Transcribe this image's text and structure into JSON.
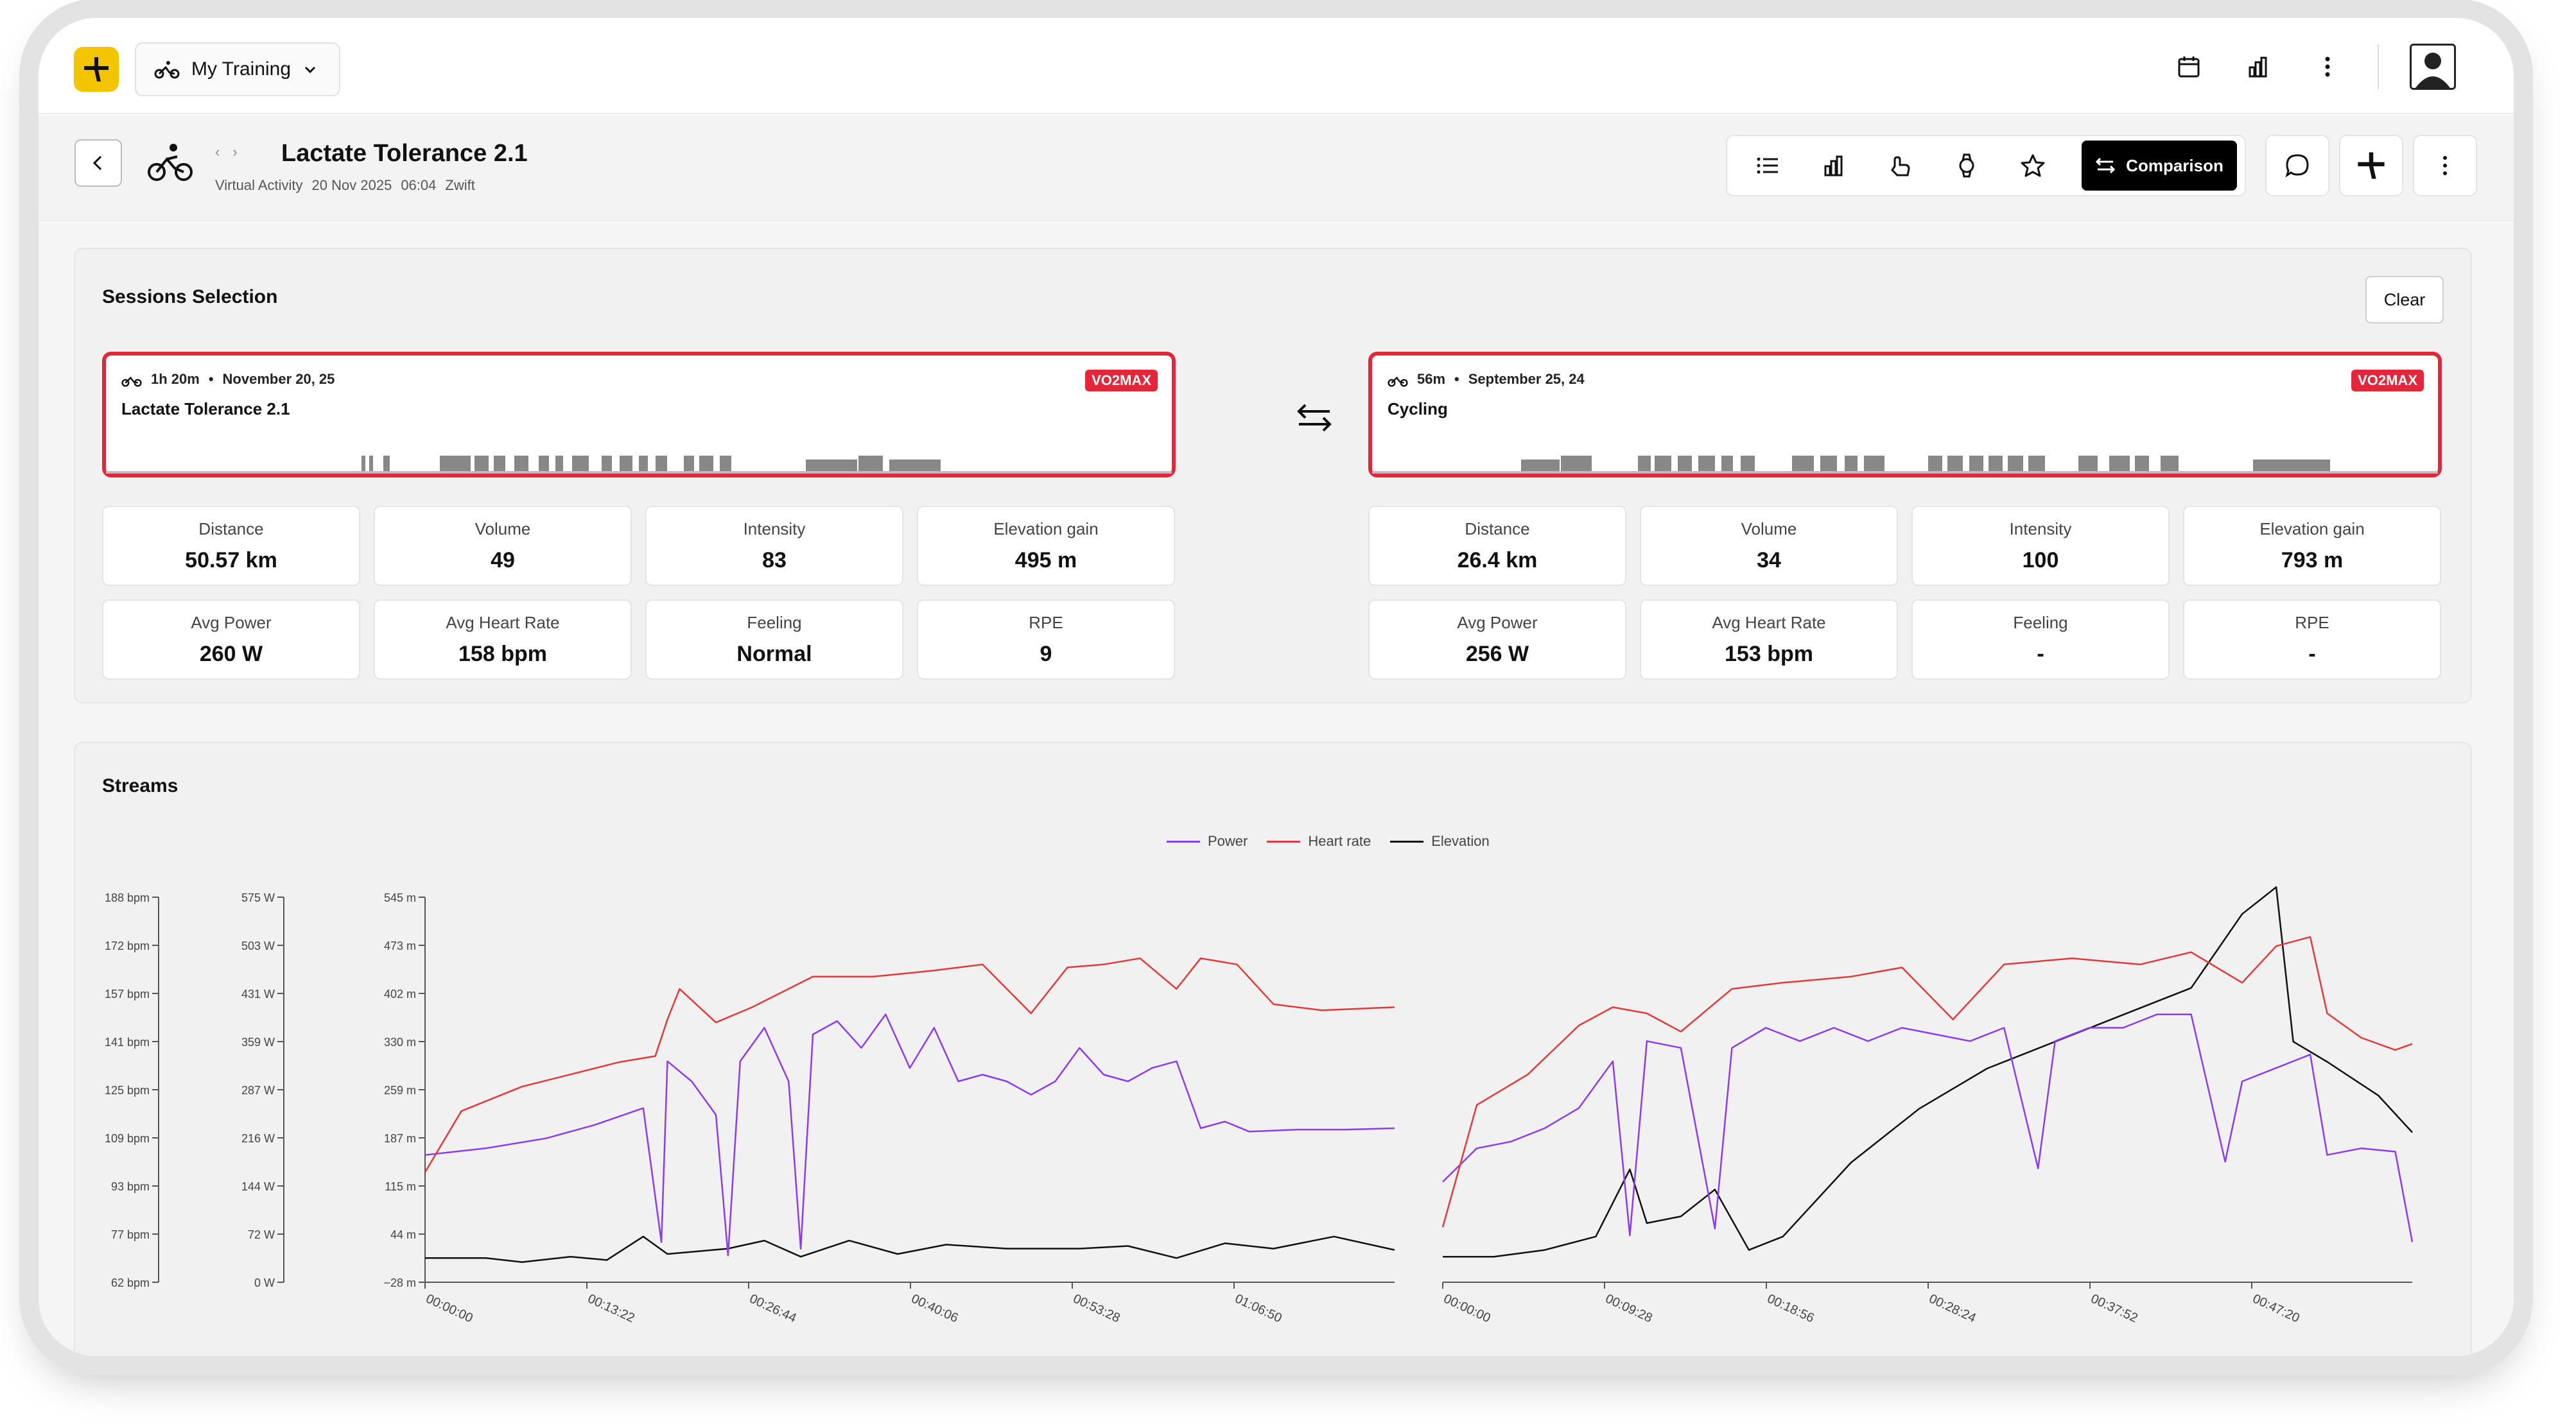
{
  "header": {
    "team_label": "My Training"
  },
  "activity": {
    "title": "Lactate Tolerance 2.1",
    "type": "Virtual Activity",
    "date": "20 Nov 2025",
    "time": "06:04",
    "source": "Zwift"
  },
  "toolbar": {
    "comparison_label": "Comparison"
  },
  "sessions": {
    "title": "Sessions Selection",
    "clear_label": "Clear",
    "left": {
      "duration": "1h 20m",
      "sep": "•",
      "date": "November 20, 25",
      "name": "Lactate Tolerance 2.1",
      "badge": "VO2MAX",
      "metrics": [
        {
          "label": "Distance",
          "value": "50.57 km"
        },
        {
          "label": "Volume",
          "value": "49"
        },
        {
          "label": "Intensity",
          "value": "83"
        },
        {
          "label": "Elevation gain",
          "value": "495 m"
        },
        {
          "label": "Avg Power",
          "value": "260 W"
        },
        {
          "label": "Avg Heart Rate",
          "value": "158 bpm"
        },
        {
          "label": "Feeling",
          "value": "Normal"
        },
        {
          "label": "RPE",
          "value": "9"
        }
      ]
    },
    "right": {
      "duration": "56m",
      "sep": "•",
      "date": "September 25, 24",
      "name": "Cycling",
      "badge": "VO2MAX",
      "metrics": [
        {
          "label": "Distance",
          "value": "26.4 km"
        },
        {
          "label": "Volume",
          "value": "34"
        },
        {
          "label": "Intensity",
          "value": "100"
        },
        {
          "label": "Elevation gain",
          "value": "793 m"
        },
        {
          "label": "Avg Power",
          "value": "256 W"
        },
        {
          "label": "Avg Heart Rate",
          "value": "153 bpm"
        },
        {
          "label": "Feeling",
          "value": "-"
        },
        {
          "label": "RPE",
          "value": "-"
        }
      ]
    }
  },
  "streams": {
    "title": "Streams",
    "legend": [
      "Power",
      "Heart rate",
      "Elevation"
    ],
    "colors": {
      "power": "#8b3cf0",
      "heart_rate": "#e03a3a",
      "elevation": "#111111"
    }
  },
  "chart_data": {
    "type": "line",
    "y_axes": {
      "heart_rate": {
        "unit": "bpm",
        "ticks": [
          "188 bpm",
          "172 bpm",
          "157 bpm",
          "141 bpm",
          "125 bpm",
          "109 bpm",
          "93 bpm",
          "77 bpm",
          "62 bpm"
        ],
        "range": [
          62,
          188
        ]
      },
      "power": {
        "unit": "W",
        "ticks": [
          "575 W",
          "503 W",
          "431 W",
          "359 W",
          "287 W",
          "216 W",
          "144 W",
          "72 W",
          "0 W"
        ],
        "range": [
          0,
          575
        ]
      },
      "elevation": {
        "unit": "m",
        "ticks": [
          "545 m",
          "473 m",
          "402 m",
          "330 m",
          "259 m",
          "187 m",
          "115 m",
          "44 m",
          "−28 m"
        ],
        "range": [
          -28,
          545
        ]
      }
    },
    "panels": [
      {
        "name": "Lactate Tolerance 2.1",
        "x_ticks": [
          "00:00:00",
          "00:13:22",
          "00:26:44",
          "00:40:06",
          "00:53:28",
          "01:06:50"
        ],
        "series": {
          "heart_rate_bpm": [
            [
              0,
              98
            ],
            [
              3,
              118
            ],
            [
              8,
              126
            ],
            [
              12,
              130
            ],
            [
              16,
              134
            ],
            [
              19,
              136
            ],
            [
              20,
              148
            ],
            [
              21,
              158
            ],
            [
              24,
              147
            ],
            [
              27,
              152
            ],
            [
              32,
              162
            ],
            [
              37,
              162
            ],
            [
              42,
              164
            ],
            [
              46,
              166
            ],
            [
              50,
              150
            ],
            [
              53,
              165
            ],
            [
              56,
              166
            ],
            [
              59,
              168
            ],
            [
              62,
              158
            ],
            [
              64,
              168
            ],
            [
              67,
              166
            ],
            [
              70,
              153
            ],
            [
              74,
              151
            ],
            [
              80,
              152
            ]
          ],
          "power_w": [
            [
              0,
              190
            ],
            [
              5,
              200
            ],
            [
              10,
              215
            ],
            [
              14,
              235
            ],
            [
              18,
              260
            ],
            [
              19.5,
              60
            ],
            [
              20,
              330
            ],
            [
              22,
              300
            ],
            [
              24,
              250
            ],
            [
              25,
              40
            ],
            [
              26,
              330
            ],
            [
              28,
              380
            ],
            [
              30,
              300
            ],
            [
              31,
              50
            ],
            [
              32,
              370
            ],
            [
              34,
              390
            ],
            [
              36,
              350
            ],
            [
              38,
              400
            ],
            [
              40,
              320
            ],
            [
              42,
              380
            ],
            [
              44,
              300
            ],
            [
              46,
              310
            ],
            [
              48,
              300
            ],
            [
              50,
              280
            ],
            [
              52,
              300
            ],
            [
              54,
              350
            ],
            [
              56,
              310
            ],
            [
              58,
              300
            ],
            [
              60,
              320
            ],
            [
              62,
              330
            ],
            [
              64,
              230
            ],
            [
              66,
              240
            ],
            [
              68,
              225
            ],
            [
              72,
              228
            ],
            [
              76,
              228
            ],
            [
              80,
              230
            ]
          ],
          "elevation_m": [
            [
              0,
              8
            ],
            [
              5,
              8
            ],
            [
              8,
              2
            ],
            [
              12,
              10
            ],
            [
              15,
              5
            ],
            [
              18,
              40
            ],
            [
              20,
              14
            ],
            [
              25,
              22
            ],
            [
              28,
              34
            ],
            [
              31,
              10
            ],
            [
              35,
              34
            ],
            [
              39,
              14
            ],
            [
              43,
              28
            ],
            [
              48,
              22
            ],
            [
              54,
              22
            ],
            [
              58,
              26
            ],
            [
              62,
              8
            ],
            [
              66,
              30
            ],
            [
              70,
              22
            ],
            [
              75,
              40
            ],
            [
              80,
              20
            ]
          ]
        }
      },
      {
        "name": "Cycling",
        "x_ticks": [
          "00:00:00",
          "00:09:28",
          "00:18:56",
          "00:28:24",
          "00:37:52",
          "00:47:20"
        ],
        "series": {
          "heart_rate_bpm": [
            [
              0,
              80
            ],
            [
              2,
              120
            ],
            [
              5,
              130
            ],
            [
              8,
              146
            ],
            [
              10,
              152
            ],
            [
              12,
              150
            ],
            [
              14,
              144
            ],
            [
              17,
              158
            ],
            [
              20,
              160
            ],
            [
              24,
              162
            ],
            [
              27,
              165
            ],
            [
              30,
              148
            ],
            [
              33,
              166
            ],
            [
              37,
              168
            ],
            [
              41,
              166
            ],
            [
              44,
              170
            ],
            [
              47,
              160
            ],
            [
              49,
              172
            ],
            [
              51,
              175
            ],
            [
              52,
              150
            ],
            [
              54,
              142
            ],
            [
              56,
              138
            ],
            [
              57,
              140
            ]
          ],
          "power_w": [
            [
              0,
              150
            ],
            [
              2,
              200
            ],
            [
              4,
              210
            ],
            [
              6,
              230
            ],
            [
              8,
              260
            ],
            [
              10,
              330
            ],
            [
              11,
              70
            ],
            [
              12,
              360
            ],
            [
              14,
              350
            ],
            [
              16,
              80
            ],
            [
              17,
              350
            ],
            [
              19,
              380
            ],
            [
              21,
              360
            ],
            [
              23,
              380
            ],
            [
              25,
              360
            ],
            [
              27,
              380
            ],
            [
              29,
              370
            ],
            [
              31,
              360
            ],
            [
              33,
              380
            ],
            [
              35,
              170
            ],
            [
              36,
              360
            ],
            [
              38,
              380
            ],
            [
              40,
              380
            ],
            [
              42,
              400
            ],
            [
              44,
              400
            ],
            [
              46,
              180
            ],
            [
              47,
              300
            ],
            [
              49,
              320
            ],
            [
              51,
              340
            ],
            [
              52,
              190
            ],
            [
              54,
              200
            ],
            [
              56,
              195
            ],
            [
              57,
              60
            ]
          ],
          "elevation_m": [
            [
              0,
              10
            ],
            [
              3,
              10
            ],
            [
              6,
              20
            ],
            [
              9,
              40
            ],
            [
              11,
              140
            ],
            [
              12,
              60
            ],
            [
              14,
              70
            ],
            [
              16,
              110
            ],
            [
              18,
              20
            ],
            [
              20,
              40
            ],
            [
              24,
              150
            ],
            [
              28,
              230
            ],
            [
              32,
              290
            ],
            [
              36,
              330
            ],
            [
              40,
              370
            ],
            [
              44,
              410
            ],
            [
              47,
              520
            ],
            [
              49,
              560
            ],
            [
              50,
              330
            ],
            [
              52,
              300
            ],
            [
              55,
              250
            ],
            [
              57,
              195
            ]
          ]
        }
      }
    ]
  }
}
